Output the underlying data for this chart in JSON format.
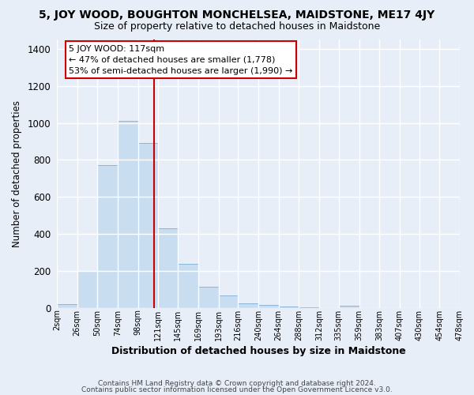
{
  "title": "5, JOY WOOD, BOUGHTON MONCHELSEA, MAIDSTONE, ME17 4JY",
  "subtitle": "Size of property relative to detached houses in Maidstone",
  "xlabel": "Distribution of detached houses by size in Maidstone",
  "ylabel": "Number of detached properties",
  "bar_color": "#c9ddf0",
  "bar_edge_color": "#8ab4d8",
  "background_color": "#e8eef8",
  "grid_color": "#ffffff",
  "bin_edges": [
    2,
    26,
    50,
    74,
    98,
    121,
    145,
    169,
    193,
    216,
    240,
    264,
    288,
    312,
    335,
    359,
    383,
    407,
    430,
    454,
    478
  ],
  "bin_labels": [
    "2sqm",
    "26sqm",
    "50sqm",
    "74sqm",
    "98sqm",
    "121sqm",
    "145sqm",
    "169sqm",
    "193sqm",
    "216sqm",
    "240sqm",
    "264sqm",
    "288sqm",
    "312sqm",
    "335sqm",
    "359sqm",
    "383sqm",
    "407sqm",
    "430sqm",
    "454sqm",
    "478sqm"
  ],
  "bar_heights": [
    20,
    200,
    770,
    1010,
    890,
    430,
    240,
    115,
    70,
    25,
    18,
    10,
    5,
    0,
    12,
    0,
    0,
    0,
    0,
    0
  ],
  "vline_x": 117,
  "vline_color": "#cc0000",
  "ylim": [
    0,
    1450
  ],
  "yticks": [
    0,
    200,
    400,
    600,
    800,
    1000,
    1200,
    1400
  ],
  "annotation_title": "5 JOY WOOD: 117sqm",
  "annotation_line1": "← 47% of detached houses are smaller (1,778)",
  "annotation_line2": "53% of semi-detached houses are larger (1,990) →",
  "annotation_box_color": "#ffffff",
  "annotation_box_edge": "#cc0000",
  "footer_line1": "Contains HM Land Registry data © Crown copyright and database right 2024.",
  "footer_line2": "Contains public sector information licensed under the Open Government Licence v3.0."
}
